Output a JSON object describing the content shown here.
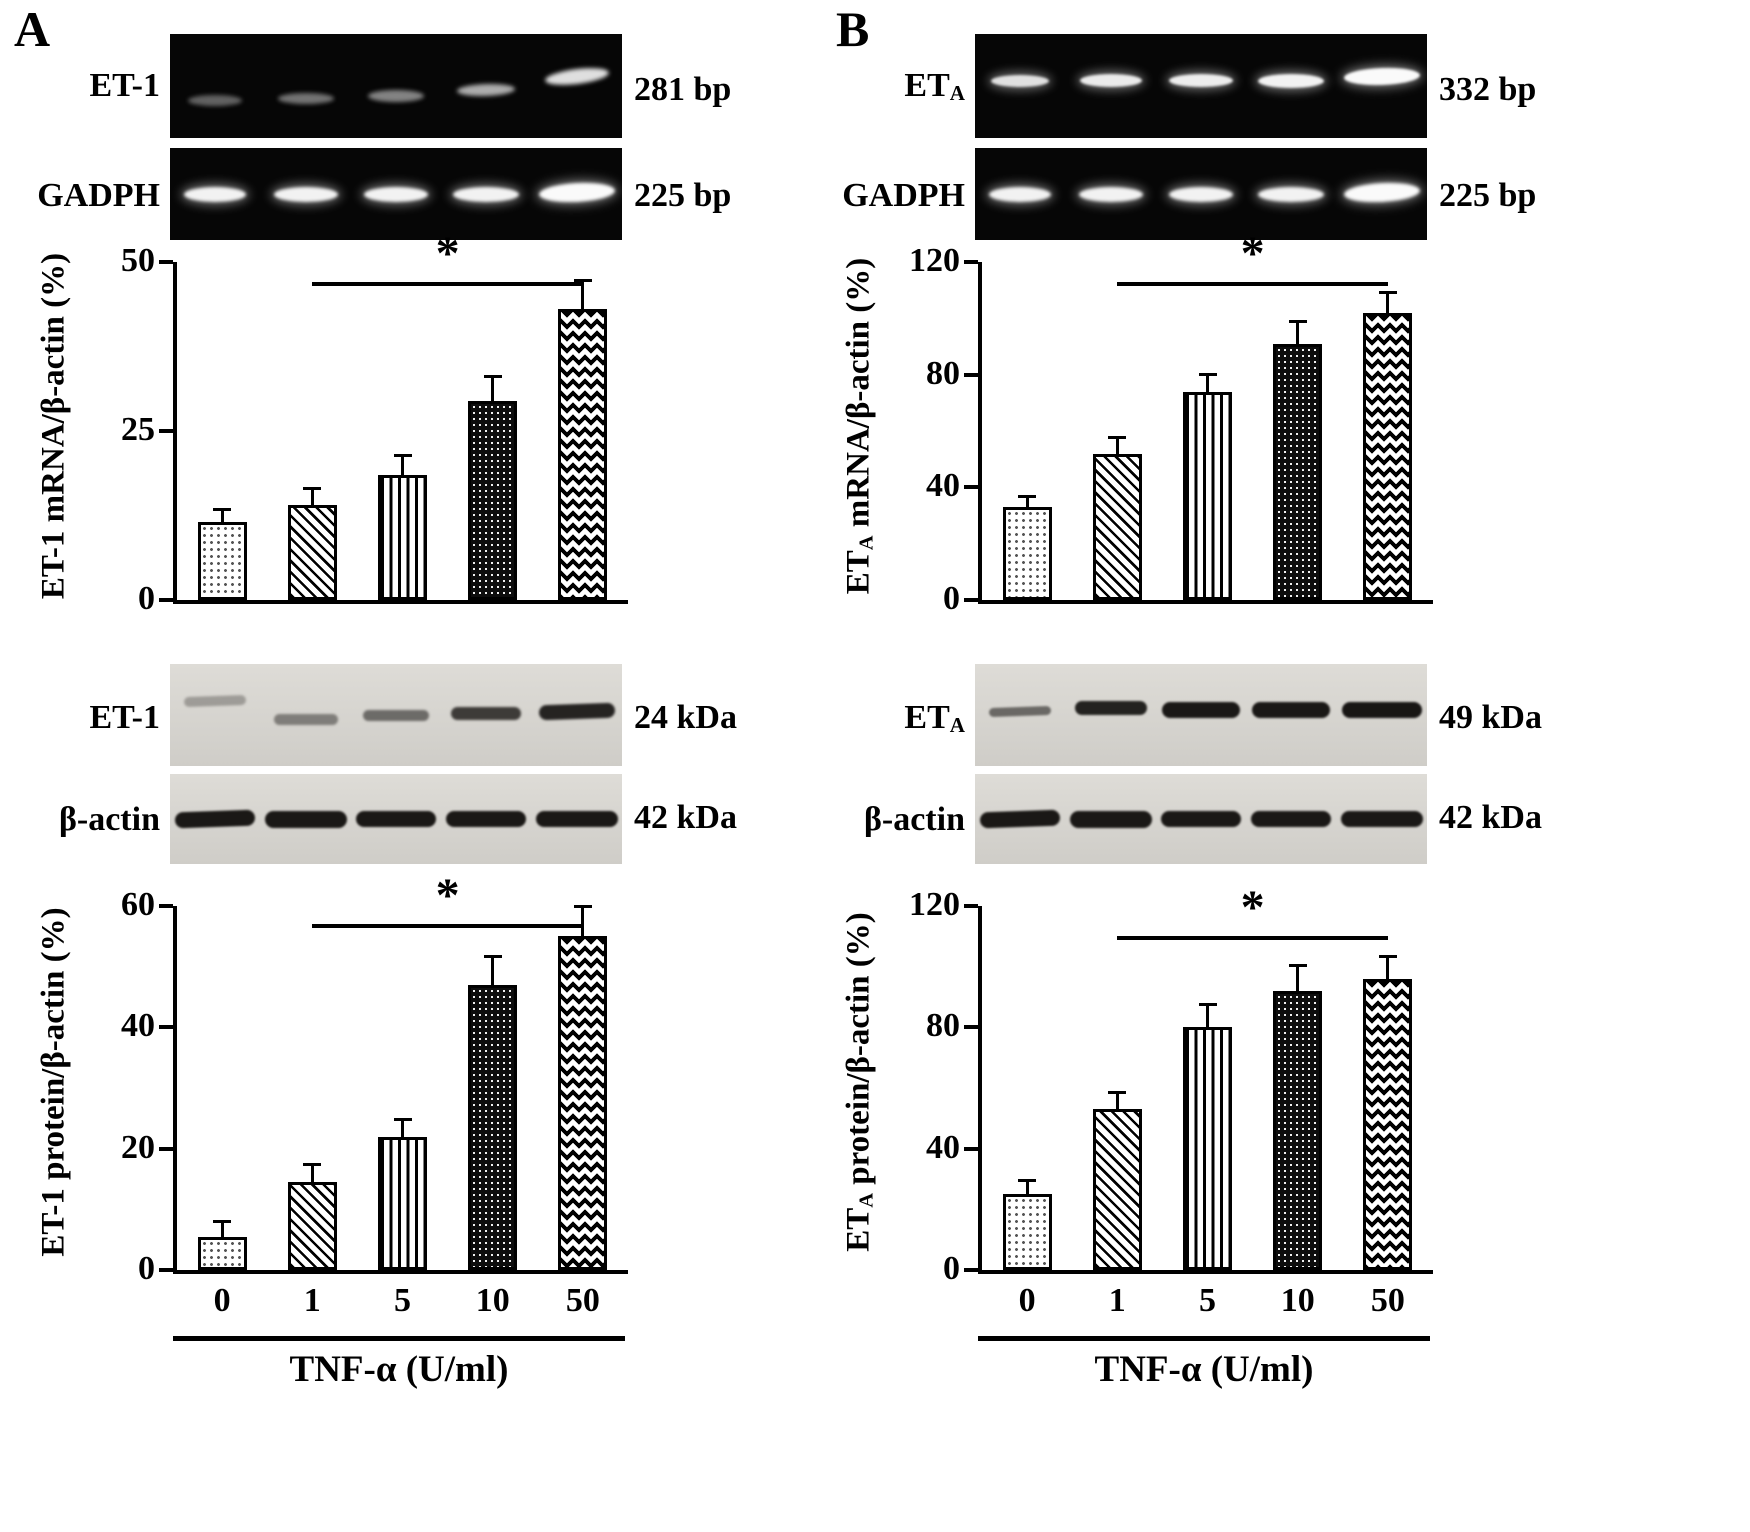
{
  "figure": {
    "bar_patterns": [
      "dotted",
      "diagonal-stripes",
      "vertical-stripes",
      "black-dotted",
      "diamond-checker"
    ],
    "panels": [
      {
        "letter": "A",
        "gels": [
          {
            "label_main": "ET-1",
            "label_sub": "",
            "size_label": "281 bp"
          },
          {
            "label_main": "GADPH",
            "label_sub": "",
            "size_label": "225 bp"
          }
        ],
        "blots": [
          {
            "label_main": "ET-1",
            "label_sub": "",
            "size_label": "24 kDa"
          },
          {
            "label_main": "β-actin",
            "label_sub": "",
            "size_label": "42 kDa"
          }
        ],
        "xaxis_title": "TNF-α (U/ml)"
      },
      {
        "letter": "B",
        "gels": [
          {
            "label_main": "ET",
            "label_sub": "A",
            "size_label": "332 bp"
          },
          {
            "label_main": "GADPH",
            "label_sub": "",
            "size_label": "225 bp"
          }
        ],
        "blots": [
          {
            "label_main": "ET",
            "label_sub": "A",
            "size_label": "49 kDa"
          },
          {
            "label_main": "β-actin",
            "label_sub": "",
            "size_label": "42 kDa"
          }
        ],
        "xaxis_title": "TNF-α (U/ml)"
      }
    ]
  },
  "chart_data": [
    {
      "id": "A-mrna",
      "type": "bar",
      "ylabel_main": "ET-1",
      "ylabel_sub": "",
      "ylabel_rest": " mRNA/β-actin (%)",
      "categories": [
        "0",
        "1",
        "5",
        "10",
        "50"
      ],
      "values": [
        11.5,
        14,
        18.5,
        29.5,
        43
      ],
      "errors": [
        1.7,
        2.3,
        2.6,
        3.4,
        4
      ],
      "ylim": [
        0,
        50
      ],
      "yticks": [
        0,
        25,
        50
      ],
      "significance": {
        "from_index": 1,
        "to_index": 4,
        "label": "*",
        "y_value": 47
      },
      "show_xticklabels": false,
      "xlabel": "TNF-α (U/ml)"
    },
    {
      "id": "A-protein",
      "type": "bar",
      "ylabel_main": "ET-1",
      "ylabel_sub": "",
      "ylabel_rest": " protein/β-actin (%)",
      "categories": [
        "0",
        "1",
        "5",
        "10",
        "50"
      ],
      "values": [
        5.5,
        14.5,
        22,
        47,
        55
      ],
      "errors": [
        2.2,
        2.6,
        2.6,
        4.4,
        4.6
      ],
      "ylim": [
        0,
        60
      ],
      "yticks": [
        0,
        20,
        40,
        60
      ],
      "significance": {
        "from_index": 1,
        "to_index": 4,
        "label": "*",
        "y_value": 57
      },
      "show_xticklabels": true,
      "xlabel": "TNF-α (U/ml)"
    },
    {
      "id": "B-mrna",
      "type": "bar",
      "ylabel_main": "ET",
      "ylabel_sub": "A",
      "ylabel_rest": " mRNA/β-actin (%)",
      "categories": [
        "0",
        "1",
        "5",
        "10",
        "50"
      ],
      "values": [
        33,
        52,
        74,
        91,
        102
      ],
      "errors": [
        3.3,
        5.2,
        5.6,
        7.4,
        6.7
      ],
      "ylim": [
        0,
        120
      ],
      "yticks": [
        0,
        40,
        80,
        120
      ],
      "significance": {
        "from_index": 1,
        "to_index": 4,
        "label": "*",
        "y_value": 113
      },
      "show_xticklabels": false,
      "xlabel": "TNF-α (U/ml)"
    },
    {
      "id": "B-protein",
      "type": "bar",
      "ylabel_main": "ET",
      "ylabel_sub": "A",
      "ylabel_rest": " protein/β-actin (%)",
      "categories": [
        "0",
        "1",
        "5",
        "10",
        "50"
      ],
      "values": [
        25,
        53,
        80,
        92,
        96
      ],
      "errors": [
        4,
        5,
        7,
        8,
        7
      ],
      "ylim": [
        0,
        120
      ],
      "yticks": [
        0,
        40,
        80,
        120
      ],
      "significance": {
        "from_index": 1,
        "to_index": 4,
        "label": "*",
        "y_value": 110
      },
      "show_xticklabels": true,
      "xlabel": "TNF-α (U/ml)"
    }
  ]
}
